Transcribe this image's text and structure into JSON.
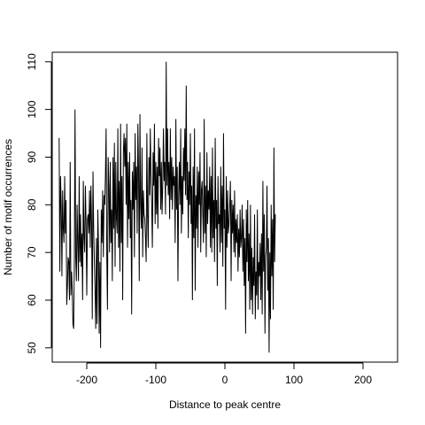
{
  "chart_data": {
    "type": "line",
    "title": "",
    "xlabel": "Distance to peak centre",
    "ylabel": "Number of motif occurrences",
    "xlim": [
      -250,
      250
    ],
    "ylim": [
      47,
      112
    ],
    "xticks": [
      -200,
      -100,
      0,
      100,
      200
    ],
    "yticks": [
      50,
      60,
      70,
      80,
      90,
      100,
      110
    ],
    "grid": false,
    "line_color": "#000000",
    "series": [
      {
        "x_start": -240,
        "x_step": 1,
        "values": [
          94,
          66,
          86,
          80,
          65,
          83,
          75,
          72,
          86,
          74,
          81,
          59,
          63,
          69,
          68,
          60,
          89,
          61,
          66,
          62,
          55,
          54,
          68,
          100,
          69,
          64,
          80,
          72,
          64,
          86,
          68,
          78,
          67,
          74,
          60,
          85,
          73,
          70,
          84,
          76,
          61,
          77,
          78,
          74,
          83,
          71,
          84,
          76,
          56,
          87,
          75,
          68,
          62,
          54,
          73,
          55,
          79,
          71,
          53,
          68,
          50,
          79,
          72,
          83,
          69,
          82,
          80,
          86,
          96,
          69,
          58,
          90,
          84,
          70,
          89,
          72,
          79,
          64,
          90,
          75,
          93,
          67,
          89,
          77,
          74,
          96,
          71,
          85,
          66,
          97,
          72,
          86,
          60,
          91,
          95,
          88,
          94,
          80,
          97,
          71,
          89,
          77,
          91,
          73,
          81,
          57,
          87,
          79,
          89,
          69,
          95,
          81,
          88,
          74,
          97,
          87,
          64,
          99,
          80,
          75,
          92,
          69,
          83,
          78,
          77,
          73,
          68,
          95,
          78,
          71,
          90,
          82,
          96,
          86,
          80,
          71,
          91,
          84,
          97,
          76,
          89,
          78,
          88,
          75,
          94,
          86,
          92,
          79,
          89,
          78,
          84,
          96,
          85,
          89,
          78,
          110,
          84,
          96,
          82,
          89,
          77,
          96,
          81,
          90,
          79,
          88,
          84,
          86,
          72,
          98,
          79,
          88,
          64,
          82,
          89,
          80,
          96,
          74,
          86,
          78,
          92,
          85,
          96,
          82,
          105,
          81,
          89,
          73,
          87,
          80,
          95,
          76,
          84,
          60,
          88,
          73,
          96,
          62,
          82,
          75,
          88,
          71,
          87,
          80,
          91,
          70,
          83,
          85,
          78,
          72,
          98,
          74,
          84,
          69,
          91,
          76,
          83,
          79,
          88,
          71,
          86,
          70,
          92,
          73,
          81,
          68,
          94,
          75,
          81,
          63,
          86,
          76,
          78,
          70,
          88,
          72,
          84,
          67,
          95,
          75,
          79,
          58,
          86,
          71,
          83,
          74,
          76,
          80,
          85,
          64,
          81,
          74,
          80,
          70,
          83,
          69,
          77,
          72,
          78,
          66,
          75,
          69,
          79,
          71,
          73,
          80,
          66,
          77,
          63,
          73,
          53,
          79,
          68,
          81,
          64,
          74,
          58,
          80,
          60,
          71,
          57,
          69,
          63,
          78,
          56,
          66,
          61,
          79,
          58,
          68,
          65,
          72,
          60,
          74,
          57,
          85,
          66,
          78,
          53,
          69,
          71,
          84,
          62,
          73,
          49,
          70,
          56,
          80,
          65,
          77,
          58,
          92,
          68,
          78
        ]
      }
    ]
  }
}
